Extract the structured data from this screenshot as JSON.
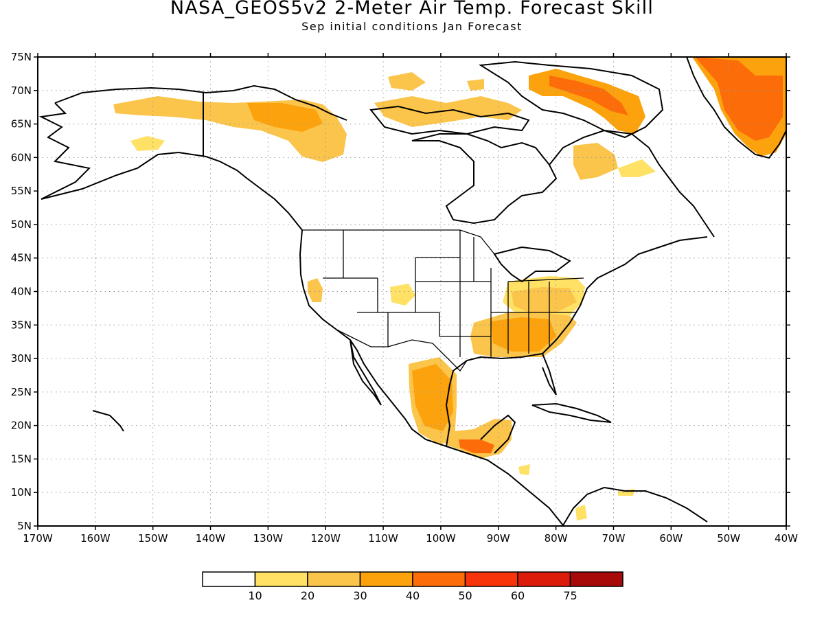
{
  "title": "NASA_GEOS5v2 2-Meter Air Temp. Forecast Skill",
  "subtitle": "Sep initial conditions  Jan Forecast",
  "map": {
    "lon_range": [
      -170,
      -40
    ],
    "lat_range": [
      5,
      75
    ],
    "grid": "dotted",
    "lat_ticks": [
      "75N",
      "70N",
      "65N",
      "60N",
      "55N",
      "50N",
      "45N",
      "40N",
      "35N",
      "30N",
      "25N",
      "20N",
      "15N",
      "10N",
      "5N"
    ],
    "lon_ticks": [
      "170W",
      "160W",
      "150W",
      "140W",
      "130W",
      "120W",
      "110W",
      "100W",
      "90W",
      "80W",
      "70W",
      "60W",
      "50W",
      "40W"
    ]
  },
  "colorbar": {
    "colors": [
      "#ffffff",
      "#fee165",
      "#fbc44a",
      "#fba20d",
      "#fc6d0a",
      "#f7340a",
      "#dc1b0a",
      "#a80a0a"
    ],
    "labels": [
      "10",
      "20",
      "30",
      "40",
      "50",
      "60",
      "75"
    ]
  },
  "regions": [
    {
      "name": "greenland",
      "level": 5
    },
    {
      "name": "baffin-island",
      "level": 4
    },
    {
      "name": "northern-alaska",
      "level": 2
    },
    {
      "name": "yukon-mackenzie",
      "level": 3
    },
    {
      "name": "nunavut-islands",
      "level": 2
    },
    {
      "name": "quebec",
      "level": 2
    },
    {
      "name": "southeast-us",
      "level": 3
    },
    {
      "name": "mid-atlantic",
      "level": 2
    },
    {
      "name": "mexico",
      "level": 4
    },
    {
      "name": "yucatan-guatemala",
      "level": 5
    },
    {
      "name": "california",
      "level": 2
    },
    {
      "name": "colorado",
      "level": 2
    }
  ]
}
